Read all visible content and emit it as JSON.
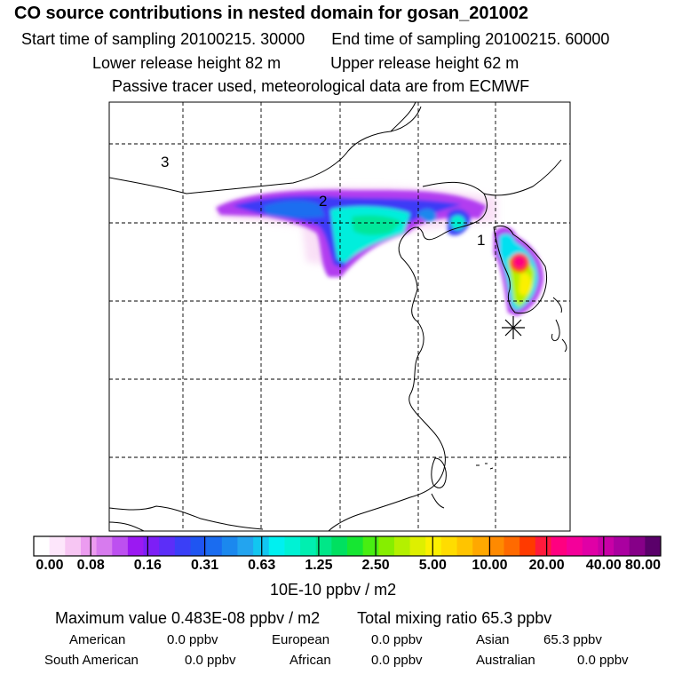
{
  "header": {
    "title": "CO  source contributions in nested domain for gosan_201002",
    "start_label": "Start time of sampling 20100215. 30000",
    "end_label": "End time of sampling 20100215. 60000",
    "lower_label": "Lower release height   82 m",
    "upper_label": "Upper release height   62 m",
    "tracer_note": "Passive tracer used, meteorological data are from ECMWF"
  },
  "map": {
    "region_labels": [
      "1",
      "2",
      "3"
    ],
    "receptor_marker": "star-receptor-icon"
  },
  "colorbar": {
    "colors": [
      "#ffffff",
      "#fde6fb",
      "#f7c6f3",
      "#ec9cf0",
      "#d77bee",
      "#bd50f0",
      "#9b19f2",
      "#7d1ff6",
      "#5c2ef8",
      "#3a3ff7",
      "#1f55f2",
      "#1a6cf0",
      "#1b88ee",
      "#23a4ef",
      "#12c6f0",
      "#00f0f0",
      "#00f2d4",
      "#00efb0",
      "#00e788",
      "#00e060",
      "#16e632",
      "#48ee12",
      "#86ee00",
      "#b4f000",
      "#deef00",
      "#fbf000",
      "#ffdc00",
      "#ffc400",
      "#ffa800",
      "#ff8a00",
      "#ff6a00",
      "#ff3a00",
      "#ff1a3c",
      "#ff0080",
      "#f4009a",
      "#e000a6",
      "#c800a6",
      "#aa00a0",
      "#860088",
      "#5a006a"
    ],
    "ticks": [
      "0.00",
      "0.08",
      "0.16",
      "0.31",
      "0.63",
      "1.25",
      "2.50",
      "5.00",
      "10.00",
      "20.00",
      "40.00",
      "80.00"
    ],
    "units": "10E-10 ppbv / m2"
  },
  "summary": {
    "max_line": "Maximum value  0.483E-08 ppbv / m2",
    "total_line": "Total mixing ratio       65.3 ppbv",
    "american_label": "American",
    "american_value": "0.0 ppbv",
    "european_label": "European",
    "european_value": "0.0 ppbv",
    "asian_label": "Asian",
    "asian_value": "65.3 ppbv",
    "south_american_label": "South American",
    "south_american_value": "0.0 ppbv",
    "african_label": "African",
    "african_value": "0.0 ppbv",
    "australian_label": "Australian",
    "australian_value": "0.0 ppbv"
  }
}
